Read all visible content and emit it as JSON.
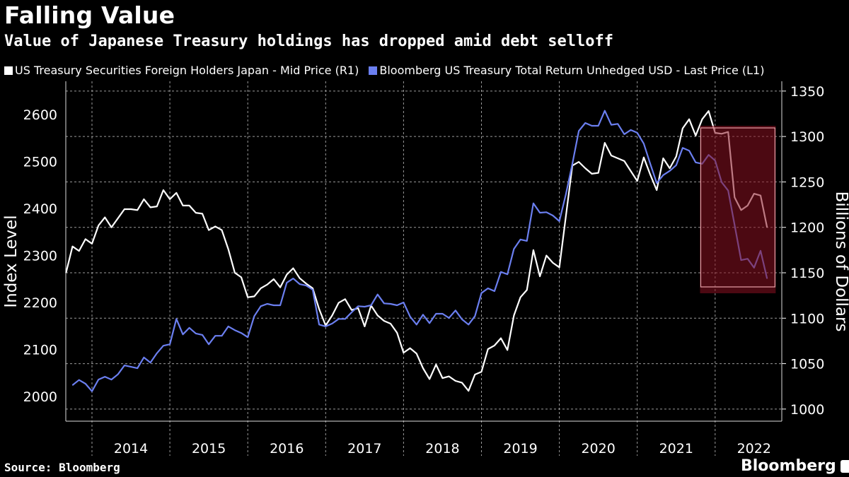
{
  "header": {
    "title": "Falling Value",
    "subtitle": "Value of Japanese Treasury holdings has dropped amid debt selloff"
  },
  "footer": {
    "source": "Source: Bloomberg",
    "logo": "Bloomberg"
  },
  "chart_data": {
    "type": "line",
    "title": "Falling Value",
    "subtitle": "Value of Japanese Treasury holdings has dropped amid debt selloff",
    "ylabel_left": "Index Level",
    "ylabel_right": "Billions of Dollars",
    "ylim_left": [
      1950,
      2680
    ],
    "ylim_right": [
      990,
      1380
    ],
    "yticks_left": [
      2000,
      2100,
      2200,
      2300,
      2400,
      2500,
      2600
    ],
    "yticks_right": [
      1000,
      1050,
      1100,
      1150,
      1200,
      1250,
      1300,
      1350
    ],
    "xtick_labels": [
      "2014",
      "2015",
      "2016",
      "2017",
      "2018",
      "2019",
      "2020",
      "2021",
      "2022"
    ],
    "grid": true,
    "legend_position": "top",
    "colors": {
      "japan": "#ffffff",
      "index": "#6b7ff0",
      "highlight": "#8a1020"
    },
    "highlight": {
      "from": "2021-11",
      "to": "2022-10"
    },
    "x": [
      "2013-09",
      "2013-10",
      "2013-11",
      "2013-12",
      "2014-01",
      "2014-02",
      "2014-03",
      "2014-04",
      "2014-05",
      "2014-06",
      "2014-07",
      "2014-08",
      "2014-09",
      "2014-10",
      "2014-11",
      "2014-12",
      "2015-01",
      "2015-02",
      "2015-03",
      "2015-04",
      "2015-05",
      "2015-06",
      "2015-07",
      "2015-08",
      "2015-09",
      "2015-10",
      "2015-11",
      "2015-12",
      "2016-01",
      "2016-02",
      "2016-03",
      "2016-04",
      "2016-05",
      "2016-06",
      "2016-07",
      "2016-08",
      "2016-09",
      "2016-10",
      "2016-11",
      "2016-12",
      "2017-01",
      "2017-02",
      "2017-03",
      "2017-04",
      "2017-05",
      "2017-06",
      "2017-07",
      "2017-08",
      "2017-09",
      "2017-10",
      "2017-11",
      "2017-12",
      "2018-01",
      "2018-02",
      "2018-03",
      "2018-04",
      "2018-05",
      "2018-06",
      "2018-07",
      "2018-08",
      "2018-09",
      "2018-10",
      "2018-11",
      "2018-12",
      "2019-01",
      "2019-02",
      "2019-03",
      "2019-04",
      "2019-05",
      "2019-06",
      "2019-07",
      "2019-08",
      "2019-09",
      "2019-10",
      "2019-11",
      "2019-12",
      "2020-01",
      "2020-02",
      "2020-03",
      "2020-04",
      "2020-05",
      "2020-06",
      "2020-07",
      "2020-08",
      "2020-09",
      "2020-10",
      "2020-11",
      "2020-12",
      "2021-01",
      "2021-02",
      "2021-03",
      "2021-04",
      "2021-05",
      "2021-06",
      "2021-07",
      "2021-08",
      "2021-09",
      "2021-10",
      "2021-11",
      "2021-12",
      "2022-01",
      "2022-02",
      "2022-03",
      "2022-04",
      "2022-05",
      "2022-06",
      "2022-07",
      "2022-08",
      "2022-09"
    ],
    "series": [
      {
        "name": "US Treasury Securities Foreign Holders Japan - Mid Price (R1)",
        "axis": "right",
        "color": "#ffffff",
        "values": [
          1150,
          1179,
          1174,
          1187,
          1182,
          1202,
          1211,
          1200,
          1210,
          1220,
          1220,
          1219,
          1231,
          1222,
          1223,
          1241,
          1231,
          1238,
          1224,
          1224,
          1216,
          1215,
          1197,
          1201,
          1197,
          1176,
          1150,
          1145,
          1123,
          1124,
          1133,
          1137,
          1143,
          1134,
          1148,
          1155,
          1144,
          1138,
          1133,
          1110,
          1092,
          1103,
          1117,
          1121,
          1109,
          1111,
          1091,
          1114,
          1103,
          1097,
          1094,
          1084,
          1062,
          1067,
          1061,
          1045,
          1033,
          1049,
          1034,
          1036,
          1031,
          1029,
          1020,
          1038,
          1041,
          1066,
          1070,
          1078,
          1065,
          1103,
          1123,
          1131,
          1175,
          1146,
          1169,
          1161,
          1156,
          1212,
          1268,
          1272,
          1265,
          1259,
          1260,
          1293,
          1279,
          1276,
          1273,
          1262,
          1251,
          1277,
          1258,
          1241,
          1276,
          1265,
          1278,
          1309,
          1319,
          1301,
          1319,
          1328,
          1304,
          1303,
          1305,
          1233,
          1219,
          1224,
          1237,
          1235,
          1200
        ]
      },
      {
        "name": "Bloomberg US Treasury Total Return Unhedged USD - Last Price (L1)",
        "axis": "left",
        "color": "#6b7ff0",
        "values": [
          null,
          2024,
          2035,
          2027,
          2011,
          2036,
          2042,
          2036,
          2047,
          2066,
          2063,
          2060,
          2083,
          2072,
          2092,
          2108,
          2111,
          2165,
          2132,
          2146,
          2134,
          2131,
          2111,
          2129,
          2129,
          2149,
          2141,
          2135,
          2126,
          2171,
          2192,
          2197,
          2194,
          2194,
          2242,
          2251,
          2239,
          2236,
          2227,
          2153,
          2149,
          2155,
          2165,
          2165,
          2179,
          2192,
          2191,
          2194,
          2217,
          2198,
          2197,
          2194,
          2200,
          2170,
          2153,
          2174,
          2156,
          2176,
          2176,
          2167,
          2183,
          2164,
          2153,
          2171,
          2220,
          2230,
          2224,
          2265,
          2260,
          2314,
          2334,
          2331,
          2411,
          2391,
          2392,
          2385,
          2373,
          2430,
          2495,
          2565,
          2582,
          2576,
          2576,
          2608,
          2578,
          2580,
          2558,
          2567,
          2561,
          2538,
          2495,
          2454,
          2471,
          2480,
          2492,
          2529,
          2523,
          2498,
          2495,
          2514,
          2502,
          2456,
          2438,
          2365,
          2290,
          2293,
          2274,
          2310,
          2251
        ]
      }
    ]
  }
}
